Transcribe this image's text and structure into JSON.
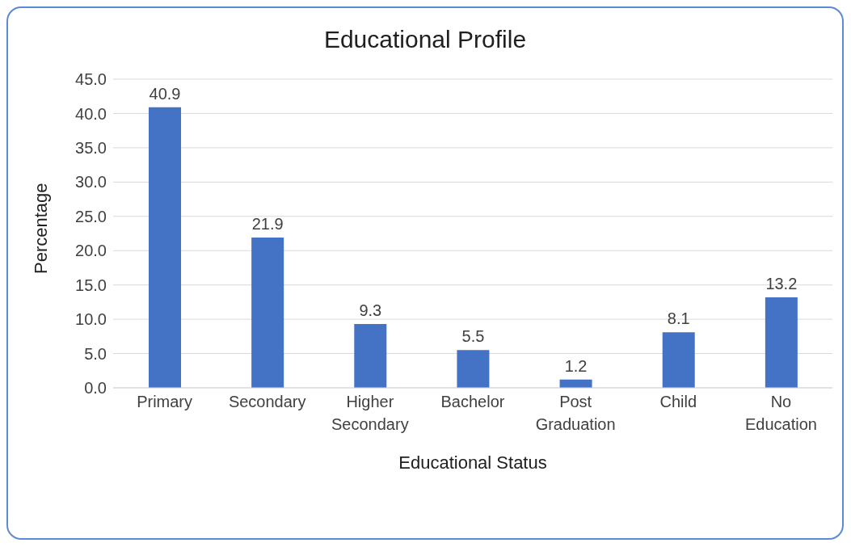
{
  "chart_data": {
    "type": "bar",
    "title": "Educational Profile",
    "xlabel": "Educational Status",
    "ylabel": "Percentage",
    "categories": [
      "Primary",
      "Secondary",
      "Higher Secondary",
      "Bachelor",
      "Post Graduation",
      "Child",
      "No Education"
    ],
    "values": [
      40.9,
      21.9,
      9.3,
      5.5,
      1.2,
      8.1,
      13.2
    ],
    "color": "#4472c4",
    "ylim": [
      0,
      45
    ],
    "yticks": [
      {
        "value": 0,
        "label": "0.0"
      },
      {
        "value": 5,
        "label": "5.0"
      },
      {
        "value": 10,
        "label": "10.0"
      },
      {
        "value": 15,
        "label": "15.0"
      },
      {
        "value": 20,
        "label": "20.0"
      },
      {
        "value": 25,
        "label": "25.0"
      },
      {
        "value": 30,
        "label": "30.0"
      },
      {
        "value": 35,
        "label": "35.0"
      },
      {
        "value": 40,
        "label": "40.0"
      },
      {
        "value": 45,
        "label": "45.0"
      }
    ],
    "grid": "y",
    "data_labels": true,
    "legend": false
  }
}
